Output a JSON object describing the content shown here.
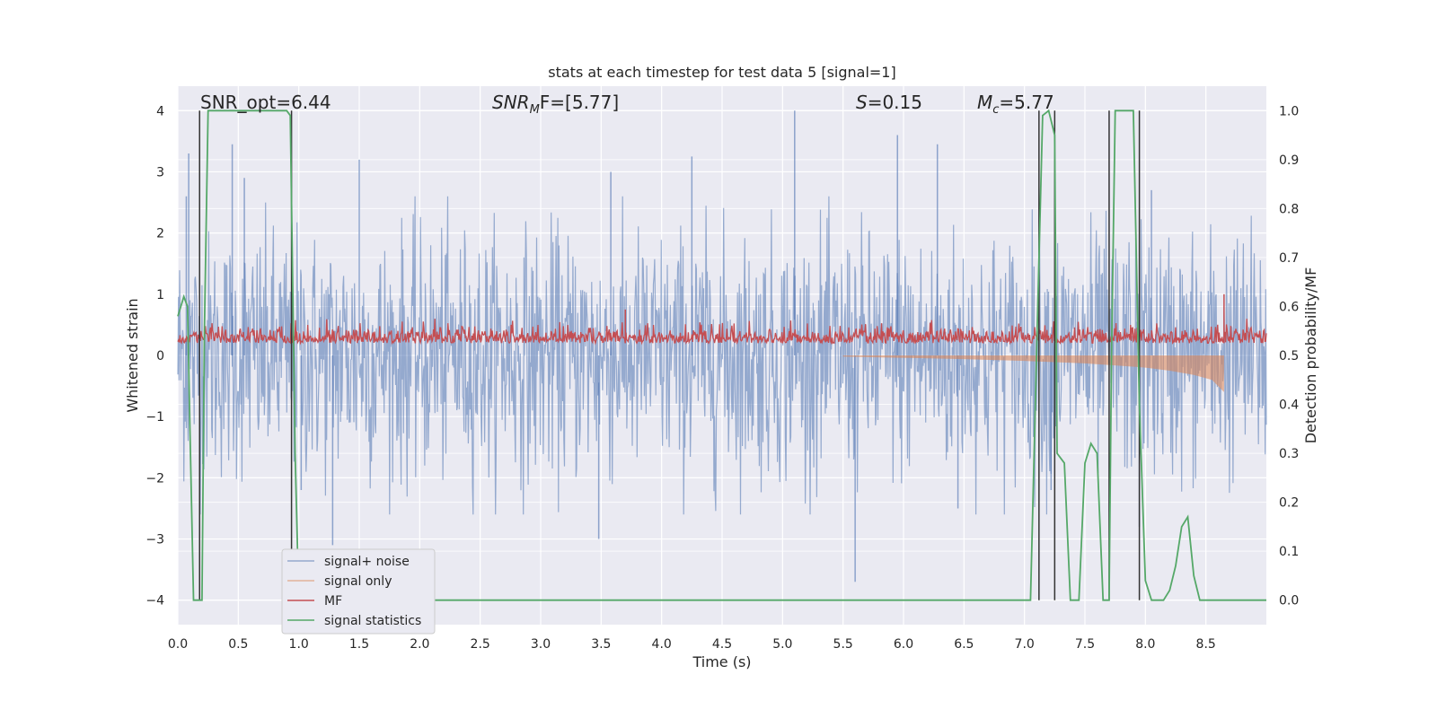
{
  "chart_data": {
    "type": "line",
    "title": "stats at each timestep for test data 5 [signal=1]",
    "xlabel": "Time (s)",
    "ylabel": "Whitened strain",
    "y2label": "Detection probability/MF",
    "xlim": [
      0.0,
      9.0
    ],
    "ylim": [
      -4.4,
      4.4
    ],
    "y2lim": [
      -0.05,
      1.05
    ],
    "xticks": [
      "0.0",
      "0.5",
      "1.0",
      "1.5",
      "2.0",
      "2.5",
      "3.0",
      "3.5",
      "4.0",
      "4.5",
      "5.0",
      "5.5",
      "6.0",
      "6.5",
      "7.0",
      "7.5",
      "8.0",
      "8.5"
    ],
    "xtick_values": [
      0,
      0.5,
      1,
      1.5,
      2,
      2.5,
      3,
      3.5,
      4,
      4.5,
      5,
      5.5,
      6,
      6.5,
      7,
      7.5,
      8,
      8.5
    ],
    "yticks": [
      "4",
      "3",
      "2",
      "1",
      "0",
      "−1",
      "−2",
      "−3",
      "−4"
    ],
    "ytick_values": [
      4,
      3,
      2,
      1,
      0,
      -1,
      -2,
      -3,
      -4
    ],
    "y2ticks": [
      "1.0",
      "0.9",
      "0.8",
      "0.7",
      "0.6",
      "0.5",
      "0.4",
      "0.3",
      "0.2",
      "0.1",
      "0.0"
    ],
    "y2tick_values": [
      1.0,
      0.9,
      0.8,
      0.7,
      0.6,
      0.5,
      0.4,
      0.3,
      0.2,
      0.1,
      0.0
    ],
    "grid": true,
    "legend_position": "lower-left",
    "annotations": {
      "snr_opt": "SNR_opt=6.44",
      "snr_mf_main": "SNR",
      "snr_mf_sub": "M",
      "snr_mf_rest": "F=[5.77]",
      "s_main": "S",
      "s_rest": "=0.15",
      "mc_main": "M",
      "mc_sub": "c",
      "mc_rest": "=5.77"
    },
    "series": [
      {
        "name": "signal+ noise",
        "color": "#4c72b0",
        "axis": "left",
        "description_points": {
          "x": [
            0.0,
            9.0
          ],
          "envelope_upper": [
            2.0,
            2.0
          ],
          "envelope_lower": [
            -2.0,
            -2.0
          ]
        },
        "peaks": [
          {
            "x": 0.07,
            "y": 2.6
          },
          {
            "x": 0.09,
            "y": 3.3
          },
          {
            "x": 0.45,
            "y": 3.45
          },
          {
            "x": 0.55,
            "y": 2.9
          },
          {
            "x": 1.02,
            "y": -2.2
          },
          {
            "x": 1.28,
            "y": -3.1
          },
          {
            "x": 1.5,
            "y": 3.2
          },
          {
            "x": 3.48,
            "y": -3.0
          },
          {
            "x": 3.58,
            "y": 3.0
          },
          {
            "x": 4.25,
            "y": 3.25
          },
          {
            "x": 5.1,
            "y": 4.0
          },
          {
            "x": 5.6,
            "y": -3.7
          },
          {
            "x": 5.95,
            "y": 3.6
          },
          {
            "x": 6.28,
            "y": 3.45
          },
          {
            "x": 6.45,
            "y": -2.5
          },
          {
            "x": 7.22,
            "y": -2.2
          },
          {
            "x": 7.95,
            "y": -2.8
          },
          {
            "x": 8.05,
            "y": 2.7
          }
        ]
      },
      {
        "name": "signal only",
        "color": "#dd8452",
        "axis": "left",
        "x": [
          5.5,
          6.0,
          6.5,
          7.0,
          7.5,
          7.8,
          8.0,
          8.2,
          8.4,
          8.55,
          8.65
        ],
        "envelope": [
          0.02,
          0.04,
          0.06,
          0.09,
          0.13,
          0.17,
          0.2,
          0.25,
          0.32,
          0.4,
          0.6
        ]
      },
      {
        "name": "MF",
        "color": "#c44e52",
        "axis": "left",
        "baseline": 0.2,
        "amplitude": 0.25,
        "peaks": [
          {
            "x": 3.7,
            "y": 0.75
          },
          {
            "x": 8.65,
            "y": 1.0
          }
        ]
      },
      {
        "name": "signal statistics",
        "color": "#55a868",
        "axis": "right",
        "x": [
          0.0,
          0.05,
          0.08,
          0.1,
          0.13,
          0.2,
          0.22,
          0.25,
          0.35,
          0.5,
          0.7,
          0.9,
          0.93,
          0.97,
          1.0,
          1.05,
          2.0,
          4.0,
          6.0,
          7.05,
          7.1,
          7.15,
          7.2,
          7.25,
          7.27,
          7.33,
          7.38,
          7.42,
          7.45,
          7.5,
          7.55,
          7.6,
          7.65,
          7.7,
          7.72,
          7.75,
          7.82,
          7.9,
          7.95,
          8.0,
          8.05,
          8.1,
          8.15,
          8.2,
          8.25,
          8.3,
          8.35,
          8.4,
          8.45,
          8.5,
          8.6,
          8.7,
          8.8,
          9.0
        ],
        "y": [
          0.58,
          0.62,
          0.6,
          0.35,
          0.0,
          0.0,
          0.55,
          1.0,
          1.0,
          1.0,
          1.0,
          1.0,
          0.99,
          0.3,
          0.0,
          0.0,
          0.0,
          0.0,
          0.0,
          0.0,
          0.5,
          0.99,
          1.0,
          0.95,
          0.3,
          0.28,
          0.0,
          0.0,
          0.0,
          0.28,
          0.32,
          0.3,
          0.0,
          0.0,
          0.5,
          1.0,
          1.0,
          1.0,
          0.4,
          0.04,
          0.0,
          0.0,
          0.0,
          0.02,
          0.07,
          0.15,
          0.17,
          0.05,
          0.0,
          0.0,
          0.0,
          0.0,
          0.0,
          0.0
        ]
      }
    ],
    "vertical_markers": {
      "color": "#333333",
      "x": [
        0.18,
        0.94,
        7.12,
        7.25,
        7.7,
        7.95
      ],
      "y_range": [
        -4.0,
        4.0
      ]
    }
  }
}
